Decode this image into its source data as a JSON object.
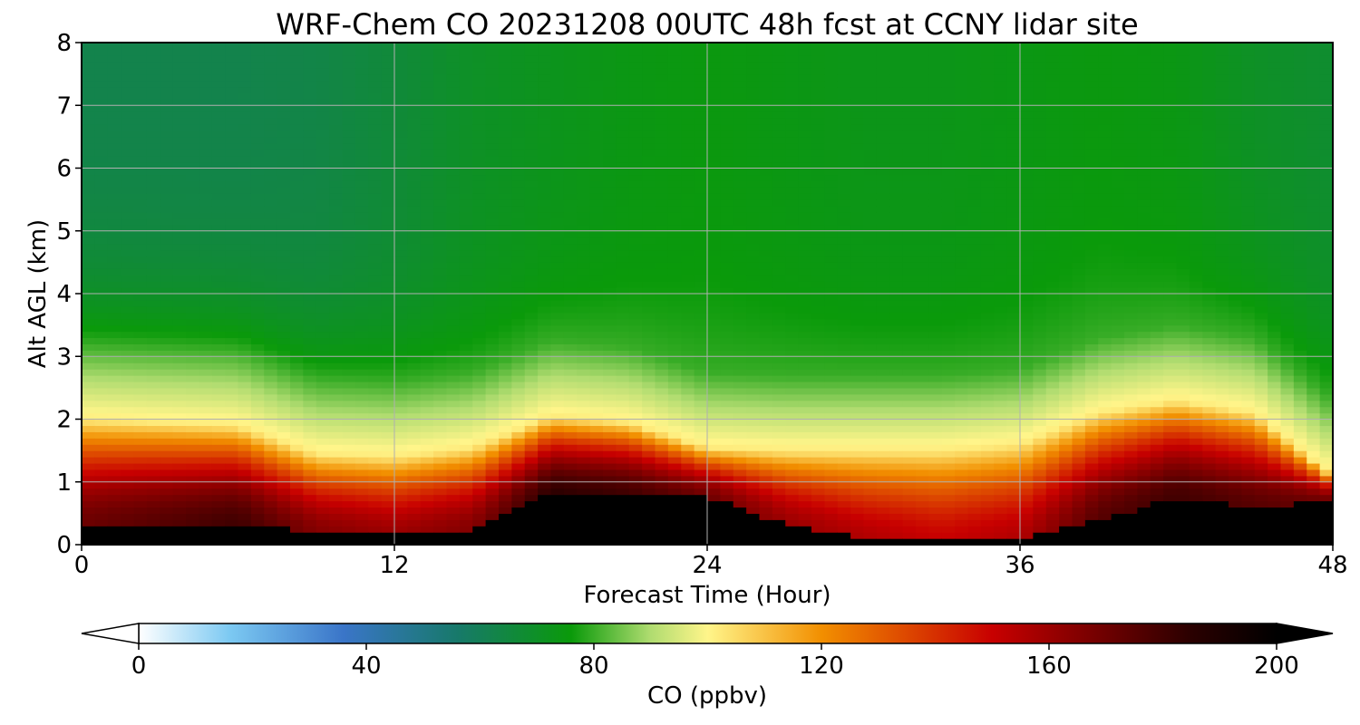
{
  "chart_data": {
    "type": "heatmap",
    "title": "WRF-Chem CO  20231208 00UTC 48h fcst at CCNY lidar site",
    "xlabel": "Forecast Time (Hour)",
    "ylabel": "Alt AGL (km)",
    "xlim": [
      0,
      48
    ],
    "ylim": [
      0,
      8
    ],
    "x_ticks": [
      0,
      12,
      24,
      36,
      48
    ],
    "y_ticks": [
      0,
      1,
      2,
      3,
      4,
      5,
      6,
      7,
      8
    ],
    "grid": true,
    "colorbar": {
      "label": "CO  (ppbv)",
      "range": [
        0,
        200
      ],
      "ticks": [
        0,
        40,
        80,
        120,
        160,
        200
      ],
      "extend": "both",
      "colors": [
        {
          "v": 0,
          "c": "#ffffff"
        },
        {
          "v": 16,
          "c": "#7cc9f2"
        },
        {
          "v": 36,
          "c": "#3a75c8"
        },
        {
          "v": 56,
          "c": "#17796a"
        },
        {
          "v": 76,
          "c": "#0a9a0a"
        },
        {
          "v": 90,
          "c": "#b0dc70"
        },
        {
          "v": 100,
          "c": "#fff58a"
        },
        {
          "v": 120,
          "c": "#f28f00"
        },
        {
          "v": 150,
          "c": "#c80000"
        },
        {
          "v": 185,
          "c": "#2a0000"
        },
        {
          "v": 200,
          "c": "#000000"
        }
      ]
    },
    "x": [
      0,
      3,
      6,
      9,
      12,
      15,
      18,
      21,
      24,
      27,
      30,
      33,
      36,
      39,
      42,
      45,
      48
    ],
    "boundary_layer": {
      "pbl_top_km": [
        2.0,
        1.95,
        1.9,
        1.45,
        1.4,
        1.55,
        2.05,
        1.95,
        1.55,
        1.5,
        1.5,
        1.5,
        1.6,
        2.1,
        2.3,
        2.1,
        1.1
      ],
      "black_layer_top_km": [
        0.35,
        0.35,
        0.35,
        0.2,
        0.15,
        0.25,
        0.8,
        0.8,
        0.75,
        0.35,
        0.1,
        0.05,
        0.1,
        0.4,
        0.75,
        0.6,
        0.7
      ],
      "core_co_ppbv": [
        170,
        175,
        180,
        165,
        160,
        165,
        185,
        180,
        170,
        160,
        155,
        150,
        155,
        175,
        180,
        175,
        170
      ],
      "free_troposphere_co_ppbv": [
        62,
        62,
        62,
        63,
        66,
        70,
        72,
        74,
        75,
        74,
        73,
        73,
        74,
        75,
        74,
        70,
        68
      ]
    }
  }
}
